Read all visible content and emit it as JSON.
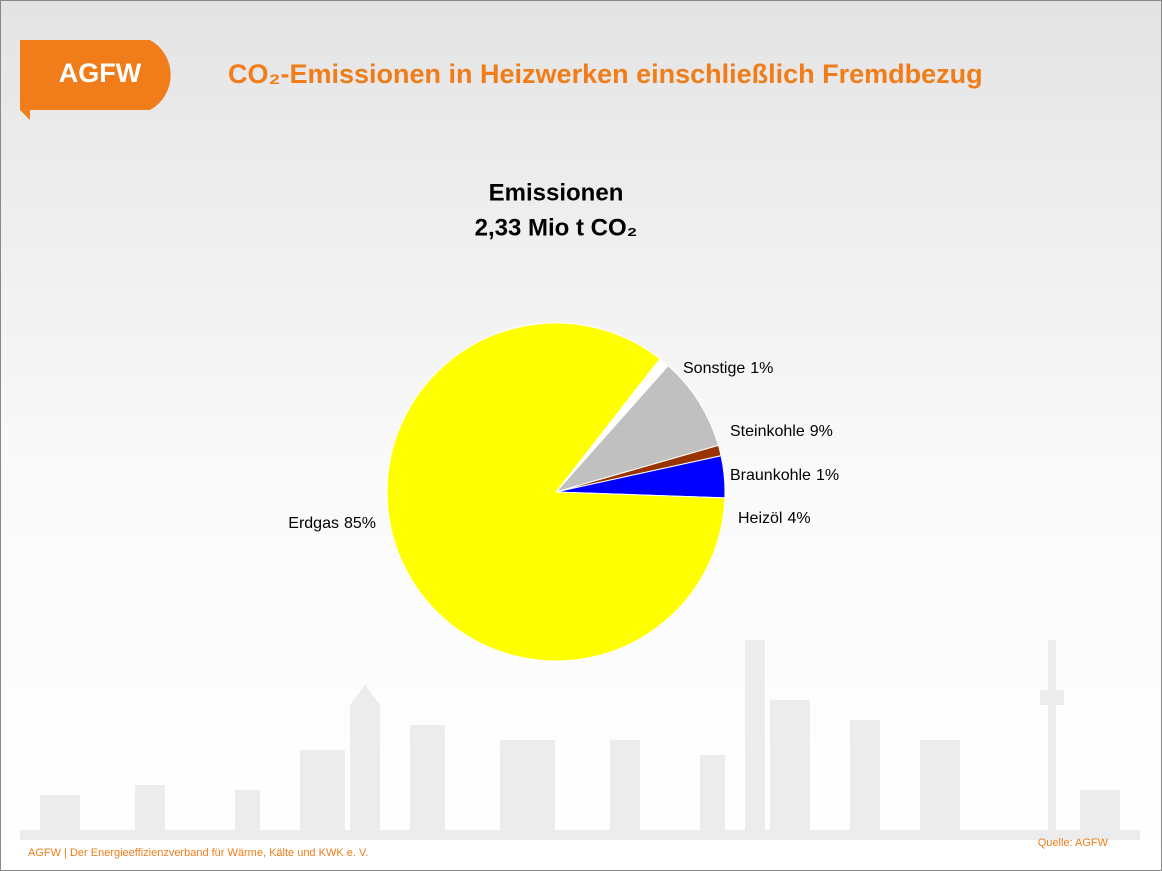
{
  "header": {
    "logo": "AGFW",
    "title": "CO₂-Emissionen in Heizwerken einschließlich Fremdbezug"
  },
  "chart_data": {
    "type": "pie",
    "title": "Emissionen",
    "subtitle": "2,33 Mio t CO₂",
    "categories": [
      "Sonstige",
      "Steinkohle",
      "Braunkohle",
      "Heizöl",
      "Erdgas"
    ],
    "values": [
      1,
      9,
      1,
      4,
      85
    ],
    "value_labels": [
      "1%",
      "9%",
      "1%",
      "4%",
      "85%"
    ],
    "colors": [
      "#ffffff",
      "#c0c0c0",
      "#993300",
      "#0000ff",
      "#ffff00"
    ]
  },
  "footer": {
    "left": "AGFW | Der Energieeffizienzverband für Wärme, Kälte und KWK e. V.",
    "source": "Quelle: AGFW"
  }
}
